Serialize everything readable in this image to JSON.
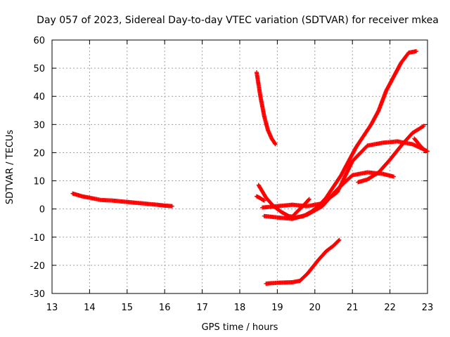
{
  "chart_data": {
    "type": "scatter",
    "title": "Day 057 of 2023, Sidereal Day-to-day VTEC variation (SDTVAR) for receiver mkea",
    "xlabel": "GPS time / hours",
    "ylabel": "SDTVAR / TECUs",
    "xlim": [
      13,
      23
    ],
    "ylim": [
      -30,
      60
    ],
    "xticks": [
      13,
      14,
      15,
      16,
      17,
      18,
      19,
      20,
      21,
      22,
      23
    ],
    "yticks": [
      -30,
      -20,
      -10,
      0,
      10,
      20,
      30,
      40,
      50,
      60
    ],
    "grid": true,
    "marker": "+",
    "color": "#ff0000",
    "series": [
      {
        "name": "arc-1",
        "x": [
          13.55,
          13.8,
          14.0,
          14.3,
          14.6,
          15.0,
          15.4,
          15.8,
          16.0,
          16.2
        ],
        "y": [
          5.5,
          4.5,
          4.0,
          3.2,
          3.0,
          2.5,
          2.0,
          1.5,
          1.2,
          1.0
        ]
      },
      {
        "name": "arc-2",
        "x": [
          18.45,
          18.55,
          18.65,
          18.75,
          18.85,
          18.95
        ],
        "y": [
          48.5,
          40,
          33,
          28,
          25,
          23
        ]
      },
      {
        "name": "arc-3",
        "x": [
          18.5,
          18.7,
          18.9,
          19.1,
          19.3,
          19.5,
          19.7,
          19.9,
          20.1,
          20.3,
          20.5,
          20.7,
          20.9,
          21.1,
          21.3,
          21.5,
          21.7,
          21.9,
          22.1,
          22.3,
          22.5,
          22.7
        ],
        "y": [
          8.5,
          4,
          1,
          -1,
          -2.5,
          -3,
          -2.5,
          -1,
          1,
          4,
          8,
          12,
          17,
          22,
          26,
          30,
          35,
          42,
          47,
          52,
          55.5,
          56
        ]
      },
      {
        "name": "arc-4",
        "x": [
          18.65,
          19.0,
          19.4,
          19.8,
          20.2,
          20.6,
          21.0,
          21.4,
          21.8,
          22.1
        ],
        "y": [
          -2.5,
          -3,
          -3.5,
          -2,
          1,
          7,
          12,
          13,
          12.5,
          11.5
        ]
      },
      {
        "name": "arc-5",
        "x": [
          18.6,
          19.0,
          19.4,
          19.8,
          20.2,
          20.6,
          21.0,
          21.4,
          21.8,
          22.2,
          22.6,
          23.0
        ],
        "y": [
          0.5,
          1,
          1.5,
          1,
          2,
          6,
          17,
          22.5,
          23.5,
          24,
          23,
          20.5
        ]
      },
      {
        "name": "arc-6",
        "x": [
          18.7,
          19.0,
          19.4,
          19.6,
          19.8,
          20.1,
          20.3,
          20.5,
          20.65
        ],
        "y": [
          -26.5,
          -26.2,
          -26,
          -25.5,
          -23,
          -18,
          -15,
          -13,
          -11
        ]
      },
      {
        "name": "arc-7",
        "x": [
          21.15,
          21.4,
          21.7,
          22.0,
          22.3,
          22.6,
          22.9
        ],
        "y": [
          9.5,
          10.5,
          13,
          17.5,
          22.5,
          27,
          29.5
        ]
      },
      {
        "name": "arc-8",
        "x": [
          22.65,
          22.8,
          22.95
        ],
        "y": [
          25,
          22.5,
          20.5
        ]
      },
      {
        "name": "arc-9",
        "x": [
          18.45,
          18.55,
          18.65
        ],
        "y": [
          4.5,
          3.8,
          3
        ]
      },
      {
        "name": "arc-10",
        "x": [
          19.45,
          19.6,
          19.75,
          19.85
        ],
        "y": [
          -2,
          0,
          2,
          3.5
        ]
      }
    ]
  }
}
